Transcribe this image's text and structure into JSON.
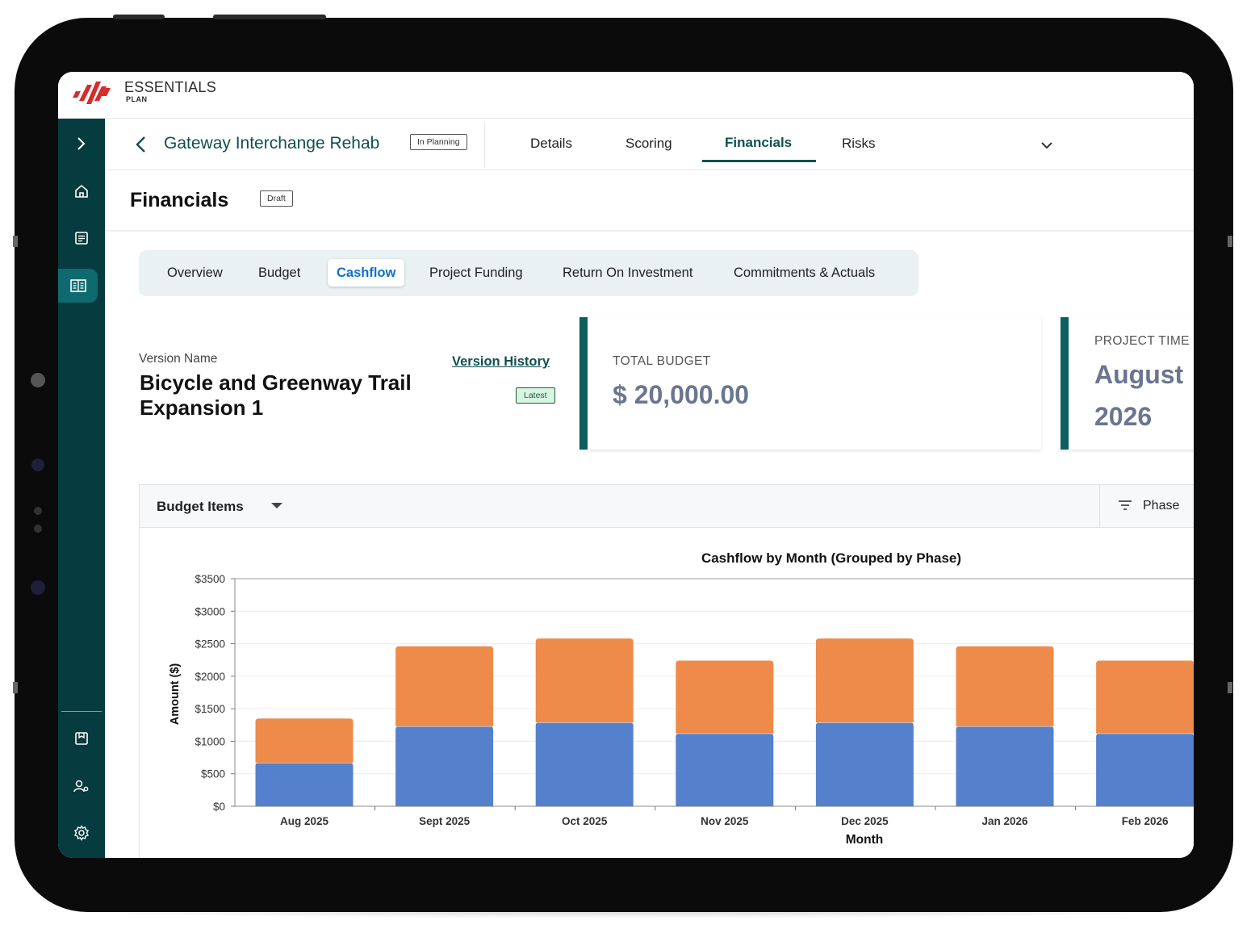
{
  "app": {
    "logo_name": "ESSENTIALS",
    "logo_sub": "PLAN"
  },
  "sidebar": {
    "items": [
      {
        "icon": "chevron-right-icon"
      },
      {
        "icon": "home-icon"
      },
      {
        "icon": "document-list-icon"
      },
      {
        "icon": "financials-icon",
        "active": true
      },
      {
        "icon": "bookmark-icon"
      },
      {
        "icon": "user-settings-icon"
      },
      {
        "icon": "gear-icon"
      }
    ]
  },
  "project": {
    "title": "Gateway Interchange Rehab",
    "status": "In Planning",
    "tabs": [
      "Details",
      "Scoring",
      "Financials",
      "Risks"
    ],
    "active_tab": "Financials"
  },
  "page": {
    "title": "Financials",
    "status": "Draft"
  },
  "subtabs": {
    "items": [
      "Overview",
      "Budget",
      "Cashflow",
      "Project Funding",
      "Return On Investment",
      "Commitments & Actuals"
    ],
    "active": "Cashflow"
  },
  "version": {
    "label": "Version Name",
    "name": "Bicycle and Greenway Trail Expansion 1",
    "history_link": "Version History",
    "badge": "Latest"
  },
  "cards": {
    "total_budget_label": "TOTAL BUDGET",
    "total_budget_value": "$ 20,000.00",
    "timeline_label": "PROJECT TIME",
    "timeline_value_line1": "August",
    "timeline_value_line2": "2026"
  },
  "panel": {
    "title": "Budget Items",
    "filter_label": "Phase"
  },
  "colors": {
    "accent": "#10504f",
    "sidebar": "#063b3f",
    "series_blue": "#5580cc",
    "series_orange": "#ee8b4a"
  },
  "chart_data": {
    "type": "bar",
    "stacked": true,
    "title": "Cashflow by Month (Grouped by Phase)",
    "xlabel": "Month",
    "ylabel": "Amount ($)",
    "categories": [
      "Aug 2025",
      "Sept 2025",
      "Oct 2025",
      "Nov 2025",
      "Dec 2025",
      "Jan 2026",
      "Feb 2026"
    ],
    "ylim": [
      0,
      3500
    ],
    "yticks": [
      0,
      500,
      1000,
      1500,
      2000,
      2500,
      3000,
      3500
    ],
    "ytick_labels": [
      "$0",
      "$500",
      "$1000",
      "$1500",
      "$2000",
      "$2500",
      "$3000",
      "$3500"
    ],
    "grid": true,
    "legend": "bottom",
    "series": [
      {
        "color": "#5580cc",
        "values": [
          670,
          1230,
          1290,
          1120,
          1290,
          1230,
          1120
        ]
      },
      {
        "color": "#ee8b4a",
        "values": [
          680,
          1230,
          1290,
          1120,
          1290,
          1230,
          1120
        ]
      }
    ]
  }
}
